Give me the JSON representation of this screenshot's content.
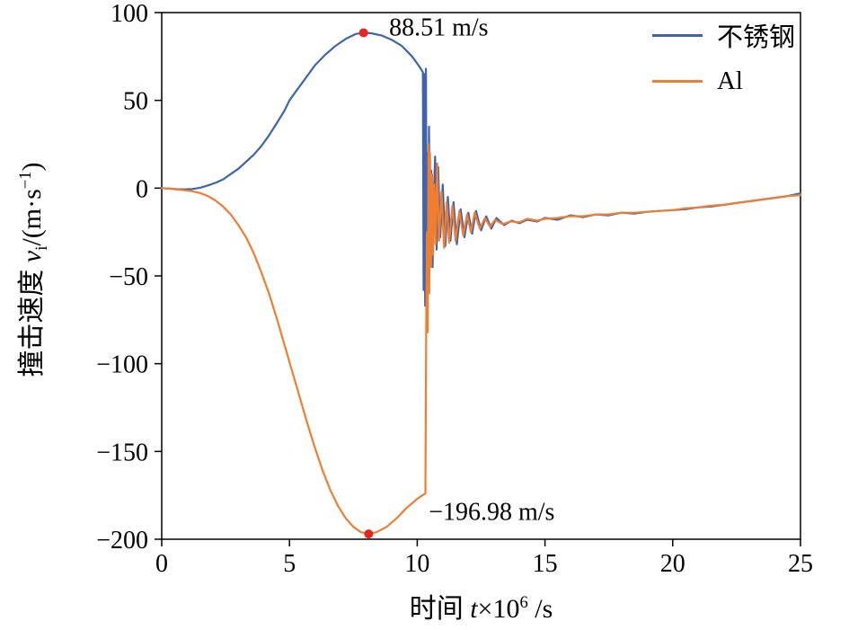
{
  "chart_data": {
    "type": "line",
    "title": "",
    "xlabel_parts": {
      "prefix": "时间 ",
      "var": "t",
      "times": "×10",
      "sup": "6",
      "suffix": " /s"
    },
    "ylabel_parts": {
      "prefix": "撞击速度 ",
      "var": "v",
      "sub": "i",
      "mid": "/(m·s",
      "sup": "−1",
      "suffix": ")"
    },
    "xlim": [
      0,
      25
    ],
    "ylim": [
      -200,
      100
    ],
    "grid": false,
    "legend_position": "top-right",
    "x_ticks": [
      0,
      5,
      10,
      15,
      20,
      25
    ],
    "x_tick_labels": [
      "0",
      "5",
      "10",
      "15",
      "20",
      "25"
    ],
    "y_ticks": [
      -200,
      -150,
      -100,
      -50,
      0,
      50,
      100
    ],
    "y_tick_labels": [
      "−200",
      "−150",
      "−100",
      "−50",
      "0",
      "50",
      "100"
    ],
    "series": [
      {
        "name": "不锈钢",
        "color": "#3f63ad",
        "points": [
          [
            0,
            0
          ],
          [
            0.3,
            -0.3
          ],
          [
            0.6,
            -0.6
          ],
          [
            0.9,
            -0.7
          ],
          [
            1.2,
            -0.5
          ],
          [
            1.5,
            0.2
          ],
          [
            1.8,
            1.5
          ],
          [
            2.1,
            3
          ],
          [
            2.4,
            5
          ],
          [
            2.7,
            8
          ],
          [
            3,
            11
          ],
          [
            3.3,
            15
          ],
          [
            3.6,
            19
          ],
          [
            3.9,
            24
          ],
          [
            4.2,
            30
          ],
          [
            4.5,
            37
          ],
          [
            4.8,
            44
          ],
          [
            5,
            50
          ],
          [
            5.3,
            56
          ],
          [
            5.6,
            62
          ],
          [
            6,
            70
          ],
          [
            6.4,
            76
          ],
          [
            6.8,
            81
          ],
          [
            7.2,
            85
          ],
          [
            7.6,
            87.8
          ],
          [
            7.9,
            88.51
          ],
          [
            8.2,
            88.2
          ],
          [
            8.6,
            87
          ],
          [
            9,
            84.5
          ],
          [
            9.4,
            81
          ],
          [
            9.8,
            75
          ],
          [
            10.1,
            69
          ],
          [
            10.22,
            66
          ],
          [
            10.25,
            -58
          ],
          [
            10.28,
            65
          ],
          [
            10.31,
            -67
          ],
          [
            10.34,
            68
          ],
          [
            10.37,
            -40
          ],
          [
            10.4,
            20
          ],
          [
            10.43,
            -55
          ],
          [
            10.46,
            35
          ],
          [
            10.5,
            -30
          ],
          [
            10.55,
            10
          ],
          [
            10.6,
            -45
          ],
          [
            10.65,
            -5
          ],
          [
            10.7,
            18
          ],
          [
            10.76,
            -35
          ],
          [
            10.82,
            12
          ],
          [
            10.9,
            -28
          ],
          [
            11,
            2
          ],
          [
            11.1,
            -33
          ],
          [
            11.2,
            -5
          ],
          [
            11.3,
            -30
          ],
          [
            11.42,
            -8
          ],
          [
            11.55,
            -32
          ],
          [
            11.7,
            -12
          ],
          [
            11.85,
            -28
          ],
          [
            12,
            -14
          ],
          [
            12.15,
            -26
          ],
          [
            12.3,
            -13
          ],
          [
            12.5,
            -24
          ],
          [
            12.7,
            -16
          ],
          [
            12.9,
            -23
          ],
          [
            13.1,
            -17
          ],
          [
            13.4,
            -21
          ],
          [
            13.7,
            -18.5
          ],
          [
            14,
            -20
          ],
          [
            14.3,
            -18
          ],
          [
            14.7,
            -19
          ],
          [
            15,
            -17
          ],
          [
            15.5,
            -18
          ],
          [
            16,
            -15.5
          ],
          [
            16.5,
            -16.5
          ],
          [
            17,
            -15
          ],
          [
            17.5,
            -15.5
          ],
          [
            18,
            -14
          ],
          [
            18.5,
            -14.5
          ],
          [
            19,
            -13.5
          ],
          [
            19.5,
            -13
          ],
          [
            20,
            -12.5
          ],
          [
            20.5,
            -12
          ],
          [
            21,
            -11
          ],
          [
            21.5,
            -10.5
          ],
          [
            22,
            -9.5
          ],
          [
            22.5,
            -8.5
          ],
          [
            23,
            -7.5
          ],
          [
            23.5,
            -6.5
          ],
          [
            24,
            -5.5
          ],
          [
            24.5,
            -4.5
          ],
          [
            25,
            -3
          ]
        ]
      },
      {
        "name": "Al",
        "color": "#ee7e32",
        "points": [
          [
            0,
            0
          ],
          [
            0.3,
            -0.3
          ],
          [
            0.6,
            -0.8
          ],
          [
            0.9,
            -1.2
          ],
          [
            1.2,
            -1.8
          ],
          [
            1.5,
            -2.8
          ],
          [
            1.8,
            -4.5
          ],
          [
            2.1,
            -7
          ],
          [
            2.4,
            -10.5
          ],
          [
            2.7,
            -15
          ],
          [
            3,
            -21
          ],
          [
            3.3,
            -28
          ],
          [
            3.6,
            -37
          ],
          [
            3.9,
            -48
          ],
          [
            4.2,
            -60
          ],
          [
            4.5,
            -74
          ],
          [
            4.8,
            -89
          ],
          [
            5.1,
            -104
          ],
          [
            5.4,
            -119
          ],
          [
            5.7,
            -134
          ],
          [
            6,
            -148
          ],
          [
            6.3,
            -161
          ],
          [
            6.6,
            -172
          ],
          [
            6.9,
            -181
          ],
          [
            7.2,
            -188
          ],
          [
            7.5,
            -193
          ],
          [
            7.8,
            -196
          ],
          [
            8.1,
            -196.98
          ],
          [
            8.4,
            -196
          ],
          [
            8.8,
            -193
          ],
          [
            9.2,
            -188
          ],
          [
            9.6,
            -182
          ],
          [
            10,
            -177
          ],
          [
            10.2,
            -175
          ],
          [
            10.32,
            -174
          ],
          [
            10.35,
            -80
          ],
          [
            10.38,
            -25
          ],
          [
            10.41,
            -82
          ],
          [
            10.44,
            25
          ],
          [
            10.47,
            -60
          ],
          [
            10.5,
            20
          ],
          [
            10.54,
            -45
          ],
          [
            10.58,
            8
          ],
          [
            10.62,
            -38
          ],
          [
            10.67,
            2
          ],
          [
            10.72,
            -32
          ],
          [
            10.78,
            14
          ],
          [
            10.85,
            -30
          ],
          [
            10.95,
            -2
          ],
          [
            11.05,
            -34
          ],
          [
            11.15,
            -8
          ],
          [
            11.25,
            -31
          ],
          [
            11.38,
            -10
          ],
          [
            11.5,
            -30
          ],
          [
            11.65,
            -13
          ],
          [
            11.8,
            -27
          ],
          [
            11.95,
            -15
          ],
          [
            12.1,
            -25
          ],
          [
            12.25,
            -14
          ],
          [
            12.45,
            -23
          ],
          [
            12.65,
            -17
          ],
          [
            12.85,
            -22
          ],
          [
            13.05,
            -18
          ],
          [
            13.35,
            -20.5
          ],
          [
            13.65,
            -19
          ],
          [
            14,
            -19.5
          ],
          [
            14.3,
            -17.5
          ],
          [
            14.7,
            -18.5
          ],
          [
            15,
            -17.5
          ],
          [
            15.5,
            -17
          ],
          [
            16,
            -16
          ],
          [
            16.5,
            -16
          ],
          [
            17,
            -15
          ],
          [
            17.5,
            -15
          ],
          [
            18,
            -14
          ],
          [
            18.5,
            -14
          ],
          [
            19,
            -13.5
          ],
          [
            19.5,
            -13
          ],
          [
            20,
            -12.5
          ],
          [
            20.5,
            -11.5
          ],
          [
            21,
            -11
          ],
          [
            21.5,
            -10
          ],
          [
            22,
            -9.5
          ],
          [
            22.5,
            -8.5
          ],
          [
            23,
            -7.5
          ],
          [
            23.5,
            -6.5
          ],
          [
            24,
            -5.5
          ],
          [
            24.5,
            -4.5
          ],
          [
            25,
            -4
          ]
        ]
      }
    ],
    "markers": [
      {
        "x": 7.9,
        "y": 88.51,
        "color": "#e8251f"
      },
      {
        "x": 8.1,
        "y": -196.98,
        "color": "#e8251f"
      }
    ],
    "annotations": [
      {
        "text": "88.51 m/s",
        "x": 8.9,
        "y": 92
      },
      {
        "text": "−196.98 m/s",
        "x": 10.45,
        "y": -184
      }
    ]
  }
}
